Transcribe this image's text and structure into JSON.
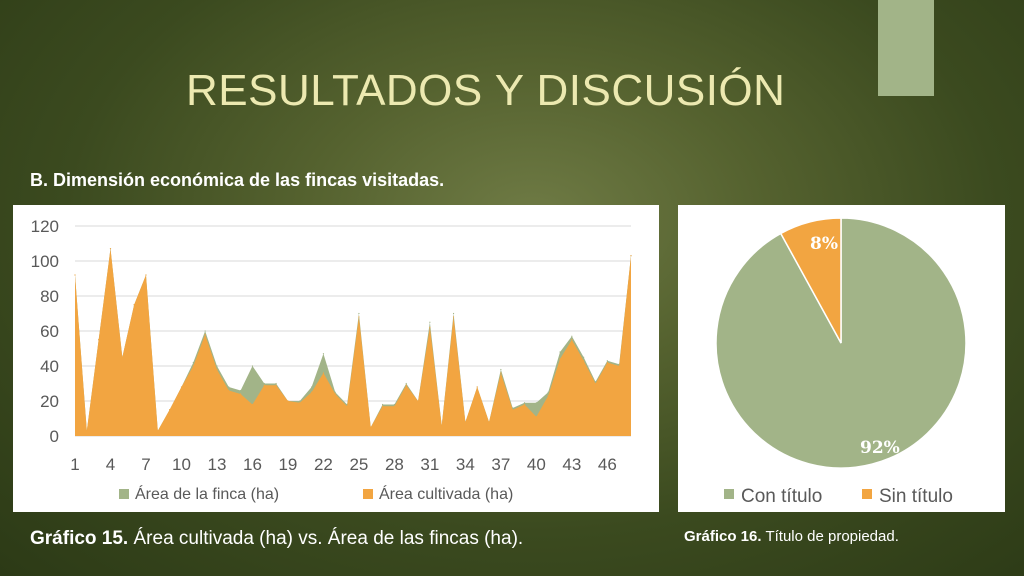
{
  "slide": {
    "title": "RESULTADOS Y DISCUSIÓN",
    "subtitle": "B. Dimensión económica de las fincas visitadas."
  },
  "captions": {
    "left_bold": "Gráfico 15.",
    "left_text": " Área cultivada (ha) vs. Área de las fincas (ha).",
    "right_bold": "Gráfico 16.",
    "right_text": " Título de propiedad."
  },
  "colors": {
    "finca": "#a2b488",
    "cultivada": "#f2a541",
    "grid": "#d9d9d9"
  },
  "chart_data": [
    {
      "type": "area",
      "title": "",
      "xlabel": "",
      "ylabel": "",
      "ylim": [
        0,
        120
      ],
      "yticks": [
        0,
        20,
        40,
        60,
        80,
        100,
        120
      ],
      "xtick_labels": [
        "1",
        "4",
        "7",
        "10",
        "13",
        "16",
        "19",
        "22",
        "25",
        "28",
        "31",
        "34",
        "37",
        "40",
        "43",
        "46"
      ],
      "grid": true,
      "legend": "bottom",
      "x": [
        1,
        2,
        3,
        4,
        5,
        6,
        7,
        8,
        9,
        10,
        11,
        12,
        13,
        14,
        15,
        16,
        17,
        18,
        19,
        20,
        21,
        22,
        23,
        24,
        25,
        26,
        27,
        28,
        29,
        30,
        31,
        32,
        33,
        34,
        35,
        36,
        37,
        38,
        39,
        40,
        41,
        42,
        43,
        44,
        45,
        46,
        47,
        48
      ],
      "series": [
        {
          "name": "Área de la finca (ha)",
          "color": "#a2b488",
          "values": [
            92,
            3,
            55,
            107,
            45,
            75,
            92,
            3,
            15,
            28,
            42,
            60,
            40,
            28,
            26,
            40,
            30,
            30,
            20,
            20,
            28,
            47,
            25,
            18,
            70,
            5,
            18,
            18,
            30,
            20,
            65,
            6,
            70,
            8,
            28,
            8,
            38,
            16,
            19,
            19,
            25,
            48,
            57,
            45,
            31,
            43,
            41,
            103
          ]
        },
        {
          "name": "Área cultivada (ha)",
          "color": "#f2a541",
          "values": [
            92,
            3,
            55,
            107,
            45,
            75,
            92,
            3,
            15,
            28,
            40,
            58,
            38,
            26,
            24,
            18,
            29,
            29,
            20,
            19,
            25,
            36,
            24,
            17,
            68,
            5,
            17,
            17,
            29,
            20,
            62,
            6,
            68,
            8,
            28,
            8,
            36,
            15,
            18,
            11,
            23,
            44,
            55,
            43,
            30,
            42,
            40,
            103
          ]
        }
      ]
    },
    {
      "type": "pie",
      "title": "",
      "legend": "bottom",
      "labels": [
        "Con título",
        "Sin título"
      ],
      "values": [
        92,
        8
      ],
      "value_labels": [
        "92%",
        "8%"
      ],
      "colors": [
        "#a2b488",
        "#f2a541"
      ]
    }
  ]
}
